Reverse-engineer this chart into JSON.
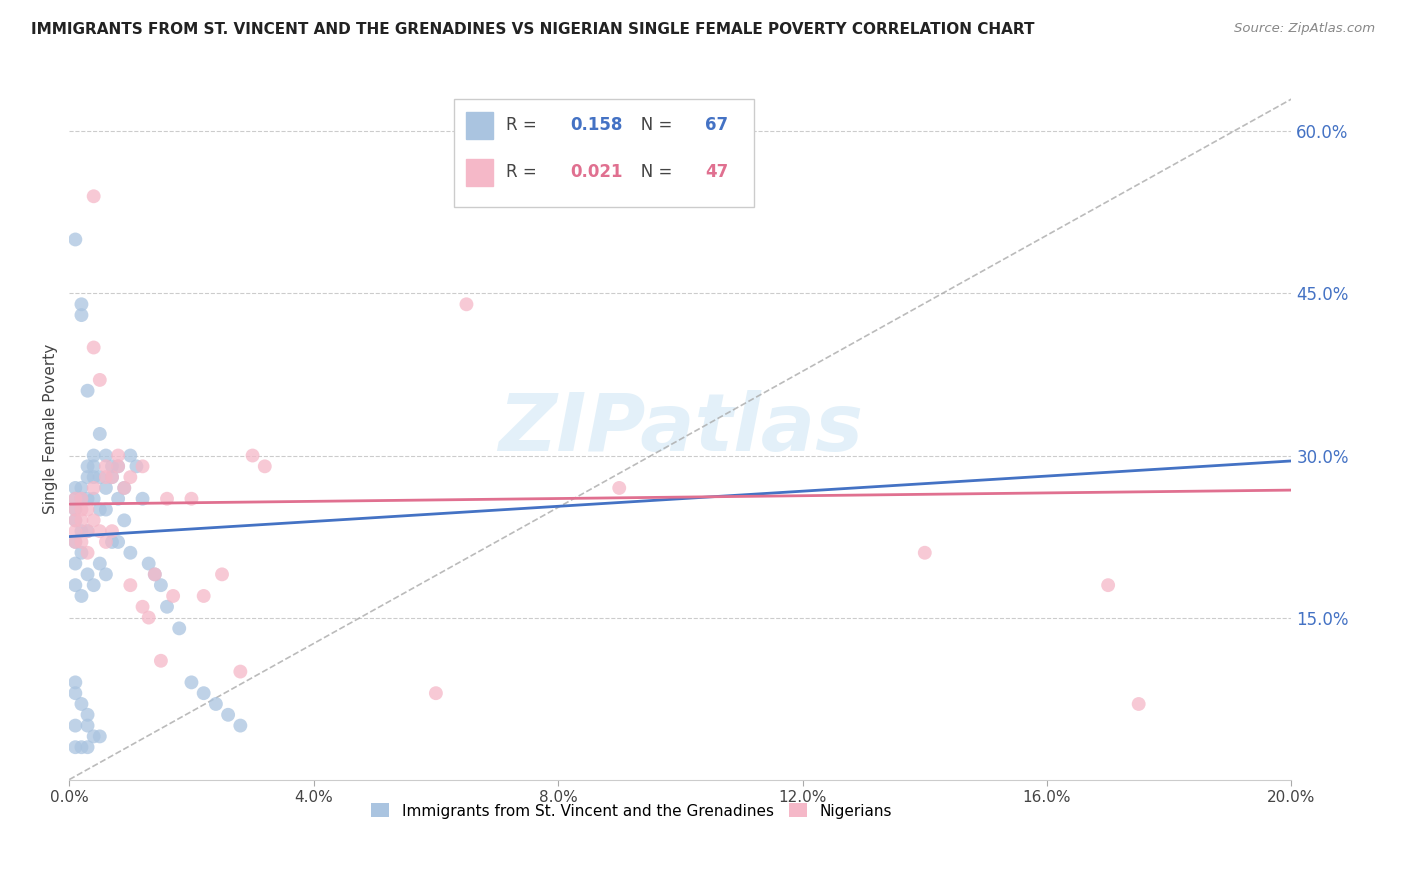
{
  "title": "IMMIGRANTS FROM ST. VINCENT AND THE GRENADINES VS NIGERIAN SINGLE FEMALE POVERTY CORRELATION CHART",
  "source": "Source: ZipAtlas.com",
  "ylabel": "Single Female Poverty",
  "r_blue": 0.158,
  "n_blue": 67,
  "r_pink": 0.021,
  "n_pink": 47,
  "xlim": [
    0.0,
    0.2
  ],
  "ylim": [
    0.0,
    0.65
  ],
  "yticks": [
    0.15,
    0.3,
    0.45,
    0.6
  ],
  "xticks": [
    0.0,
    0.04,
    0.08,
    0.12,
    0.16,
    0.2
  ],
  "blue_scatter_color": "#aac4e0",
  "blue_line_color": "#4472c4",
  "pink_scatter_color": "#f5b8c8",
  "pink_line_color": "#e07090",
  "right_axis_color": "#4472c4",
  "watermark_text": "ZIPatlas",
  "blue_line_x": [
    0.0,
    0.2
  ],
  "blue_line_y": [
    0.225,
    0.295
  ],
  "pink_line_x": [
    0.0,
    0.2
  ],
  "pink_line_y": [
    0.255,
    0.268
  ],
  "diag_line_x": [
    0.0,
    0.2
  ],
  "diag_line_y": [
    0.0,
    0.63
  ],
  "blue_x": [
    0.001,
    0.001,
    0.001,
    0.001,
    0.001,
    0.001,
    0.001,
    0.001,
    0.001,
    0.002,
    0.002,
    0.002,
    0.002,
    0.002,
    0.002,
    0.002,
    0.003,
    0.003,
    0.003,
    0.003,
    0.003,
    0.003,
    0.004,
    0.004,
    0.004,
    0.004,
    0.004,
    0.005,
    0.005,
    0.005,
    0.005,
    0.006,
    0.006,
    0.006,
    0.006,
    0.007,
    0.007,
    0.007,
    0.008,
    0.008,
    0.008,
    0.009,
    0.009,
    0.01,
    0.01,
    0.011,
    0.012,
    0.013,
    0.014,
    0.015,
    0.016,
    0.018,
    0.02,
    0.022,
    0.024,
    0.026,
    0.028,
    0.001,
    0.001,
    0.002,
    0.003,
    0.003,
    0.004,
    0.005,
    0.001,
    0.002,
    0.003
  ],
  "blue_y": [
    0.5,
    0.27,
    0.26,
    0.25,
    0.24,
    0.22,
    0.2,
    0.18,
    0.05,
    0.44,
    0.43,
    0.27,
    0.26,
    0.23,
    0.21,
    0.17,
    0.36,
    0.29,
    0.28,
    0.26,
    0.23,
    0.19,
    0.3,
    0.29,
    0.28,
    0.26,
    0.18,
    0.32,
    0.28,
    0.25,
    0.2,
    0.3,
    0.27,
    0.25,
    0.19,
    0.29,
    0.28,
    0.22,
    0.29,
    0.26,
    0.22,
    0.27,
    0.24,
    0.3,
    0.21,
    0.29,
    0.26,
    0.2,
    0.19,
    0.18,
    0.16,
    0.14,
    0.09,
    0.08,
    0.07,
    0.06,
    0.05,
    0.09,
    0.08,
    0.07,
    0.06,
    0.05,
    0.04,
    0.04,
    0.03,
    0.03,
    0.03
  ],
  "pink_x": [
    0.001,
    0.001,
    0.001,
    0.001,
    0.001,
    0.002,
    0.002,
    0.002,
    0.002,
    0.003,
    0.003,
    0.003,
    0.004,
    0.004,
    0.004,
    0.005,
    0.005,
    0.006,
    0.006,
    0.006,
    0.007,
    0.007,
    0.008,
    0.008,
    0.009,
    0.01,
    0.01,
    0.012,
    0.012,
    0.013,
    0.014,
    0.015,
    0.016,
    0.017,
    0.02,
    0.022,
    0.025,
    0.028,
    0.03,
    0.032,
    0.06,
    0.065,
    0.09,
    0.14,
    0.17,
    0.175,
    0.004
  ],
  "pink_y": [
    0.26,
    0.25,
    0.24,
    0.23,
    0.22,
    0.26,
    0.25,
    0.24,
    0.22,
    0.25,
    0.23,
    0.21,
    0.54,
    0.27,
    0.24,
    0.37,
    0.23,
    0.29,
    0.28,
    0.22,
    0.28,
    0.23,
    0.3,
    0.29,
    0.27,
    0.28,
    0.18,
    0.29,
    0.16,
    0.15,
    0.19,
    0.11,
    0.26,
    0.17,
    0.26,
    0.17,
    0.19,
    0.1,
    0.3,
    0.29,
    0.08,
    0.44,
    0.27,
    0.21,
    0.18,
    0.07,
    0.4
  ]
}
